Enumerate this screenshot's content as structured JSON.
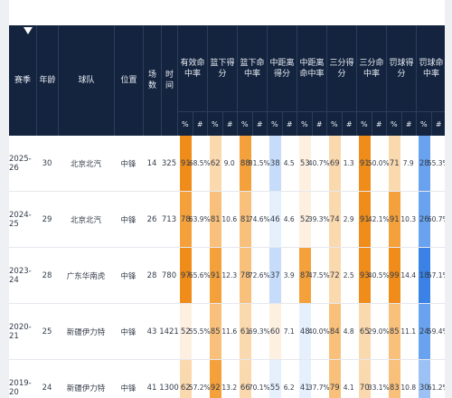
{
  "colors": {
    "header_bg": "#14243e",
    "orange_scale": [
      "#fdf0e0",
      "#fbd9ae",
      "#f8c07a",
      "#f4a13c",
      "#f08c1a"
    ],
    "blue_scale": [
      "#e6f0fd",
      "#c6dcfa",
      "#9cc2f5",
      "#69a2ee",
      "#3a82e6"
    ]
  },
  "header": {
    "columns": {
      "season": "赛季",
      "age": "年龄",
      "team": "球队",
      "position": "位置",
      "games": "场数",
      "minutes": "时间"
    },
    "groups": [
      {
        "label": "有效命中率"
      },
      {
        "label": "篮下得分"
      },
      {
        "label": "篮下命中率"
      },
      {
        "label": "中距离得分"
      },
      {
        "label": "中距离命中率"
      },
      {
        "label": "三分得分"
      },
      {
        "label": "三分命中率"
      },
      {
        "label": "罚球得分"
      },
      {
        "label": "罚球命中率"
      }
    ],
    "sub_labels": [
      "%",
      "#"
    ]
  },
  "rows": [
    {
      "season": "2025-26",
      "age": "30",
      "team": "北京北汽",
      "position": "中锋",
      "games": "14",
      "minutes": "325",
      "cells": [
        {
          "pct": "91",
          "val": "68.5%",
          "tone": "orange",
          "level": 5
        },
        {
          "pct": "62",
          "val": "9.0",
          "tone": "orange",
          "level": 2
        },
        {
          "pct": "88",
          "val": "81.5%",
          "tone": "orange",
          "level": 4
        },
        {
          "pct": "38",
          "val": "4.5",
          "tone": "blue",
          "level": 2
        },
        {
          "pct": "53",
          "val": "40.7%",
          "tone": "orange",
          "level": 1
        },
        {
          "pct": "69",
          "val": "1.3",
          "tone": "orange",
          "level": 2
        },
        {
          "pct": "91",
          "val": "50.0%",
          "tone": "orange",
          "level": 5
        },
        {
          "pct": "71",
          "val": "7.9",
          "tone": "orange",
          "level": 2
        },
        {
          "pct": "28",
          "val": "55.3%",
          "tone": "blue",
          "level": 4
        }
      ]
    },
    {
      "season": "2024-25",
      "age": "29",
      "team": "北京北汽",
      "position": "中锋",
      "games": "26",
      "minutes": "713",
      "cells": [
        {
          "pct": "78",
          "val": "63.9%",
          "tone": "orange",
          "level": 4
        },
        {
          "pct": "81",
          "val": "10.6",
          "tone": "orange",
          "level": 3
        },
        {
          "pct": "81",
          "val": "74.6%",
          "tone": "orange",
          "level": 3
        },
        {
          "pct": "46",
          "val": "4.6",
          "tone": "blue",
          "level": 1
        },
        {
          "pct": "52",
          "val": "39.3%",
          "tone": "orange",
          "level": 1
        },
        {
          "pct": "74",
          "val": "2.9",
          "tone": "orange",
          "level": 2
        },
        {
          "pct": "91",
          "val": "42.1%",
          "tone": "orange",
          "level": 5
        },
        {
          "pct": "91",
          "val": "10.3",
          "tone": "orange",
          "level": 4
        },
        {
          "pct": "26",
          "val": "60.7%",
          "tone": "blue",
          "level": 4
        }
      ]
    },
    {
      "season": "2023-24",
      "age": "28",
      "team": "广东华南虎",
      "position": "中锋",
      "games": "28",
      "minutes": "780",
      "cells": [
        {
          "pct": "97",
          "val": "65.6%",
          "tone": "orange",
          "level": 5
        },
        {
          "pct": "91",
          "val": "12.3",
          "tone": "orange",
          "level": 4
        },
        {
          "pct": "78",
          "val": "72.6%",
          "tone": "orange",
          "level": 3
        },
        {
          "pct": "37",
          "val": "3.9",
          "tone": "blue",
          "level": 2
        },
        {
          "pct": "87",
          "val": "47.5%",
          "tone": "orange",
          "level": 4
        },
        {
          "pct": "72",
          "val": "2.5",
          "tone": "orange",
          "level": 2
        },
        {
          "pct": "93",
          "val": "40.5%",
          "tone": "orange",
          "level": 5
        },
        {
          "pct": "99",
          "val": "14.4",
          "tone": "orange",
          "level": 5
        },
        {
          "pct": "18",
          "val": "57.1%",
          "tone": "blue",
          "level": 5
        }
      ]
    },
    {
      "season": "2020-21",
      "age": "25",
      "team": "新疆伊力特",
      "position": "中锋",
      "games": "43",
      "minutes": "1421",
      "cells": [
        {
          "pct": "52",
          "val": "55.5%",
          "tone": "orange",
          "level": 1
        },
        {
          "pct": "85",
          "val": "11.6",
          "tone": "orange",
          "level": 3
        },
        {
          "pct": "61",
          "val": "69.3%",
          "tone": "orange",
          "level": 2
        },
        {
          "pct": "60",
          "val": "7.1",
          "tone": "orange",
          "level": 1
        },
        {
          "pct": "48",
          "val": "40.0%",
          "tone": "blue",
          "level": 1
        },
        {
          "pct": "84",
          "val": "4.8",
          "tone": "orange",
          "level": 3
        },
        {
          "pct": "65",
          "val": "29.0%",
          "tone": "orange",
          "level": 2
        },
        {
          "pct": "85",
          "val": "11.1",
          "tone": "orange",
          "level": 3
        },
        {
          "pct": "24",
          "val": "59.4%",
          "tone": "blue",
          "level": 4
        }
      ]
    },
    {
      "season": "2019-20",
      "age": "24",
      "team": "新疆伊力特",
      "position": "中锋",
      "games": "41",
      "minutes": "1300",
      "cells": [
        {
          "pct": "62",
          "val": "57.2%",
          "tone": "orange",
          "level": 2
        },
        {
          "pct": "92",
          "val": "13.2",
          "tone": "orange",
          "level": 4
        },
        {
          "pct": "66",
          "val": "70.1%",
          "tone": "orange",
          "level": 2
        },
        {
          "pct": "55",
          "val": "6.2",
          "tone": "blue",
          "level": 1
        },
        {
          "pct": "41",
          "val": "37.7%",
          "tone": "blue",
          "level": 1
        },
        {
          "pct": "79",
          "val": "4.1",
          "tone": "orange",
          "level": 3
        },
        {
          "pct": "70",
          "val": "33.1%",
          "tone": "orange",
          "level": 2
        },
        {
          "pct": "83",
          "val": "10.8",
          "tone": "orange",
          "level": 3
        },
        {
          "pct": "30",
          "val": "61.2%",
          "tone": "blue",
          "level": 3
        }
      ]
    }
  ]
}
